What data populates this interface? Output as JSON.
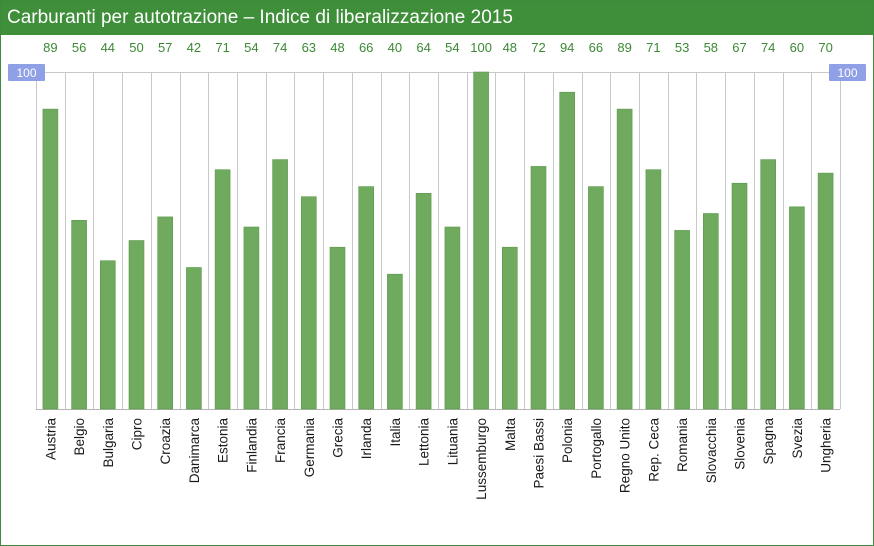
{
  "title": "Carburanti per autotrazione – Indice di liberalizzazione 2015",
  "reference_label": "100",
  "colors": {
    "header": "#3f8f3a",
    "bar": "#6faa5e",
    "bar_edge": "#5c9a4c",
    "value_text": "#3b8a33",
    "reference_box": "#8fa0e6",
    "grid": "#c8c8c8"
  },
  "chart_data": {
    "type": "bar",
    "title": "Carburanti per autotrazione – Indice di liberalizzazione 2015",
    "xlabel": "",
    "ylabel": "",
    "ylim": [
      0,
      100
    ],
    "reference_line": 100,
    "categories": [
      "Austria",
      "Belgio",
      "Bulgaria",
      "Cipro",
      "Croazia",
      "Danimarca",
      "Estonia",
      "Finlandia",
      "Francia",
      "Germania",
      "Grecia",
      "Irlanda",
      "Italia",
      "Lettonia",
      "Lituania",
      "Lussemburgo",
      "Malta",
      "Paesi Bassi",
      "Polonia",
      "Portogallo",
      "Regno Unito",
      "Rep. Ceca",
      "Romania",
      "Slovacchia",
      "Slovenia",
      "Spagna",
      "Svezia",
      "Ungheria"
    ],
    "values": [
      89,
      56,
      44,
      50,
      57,
      42,
      71,
      54,
      74,
      63,
      48,
      66,
      40,
      64,
      54,
      100,
      48,
      72,
      94,
      66,
      89,
      71,
      53,
      58,
      67,
      74,
      60,
      70
    ]
  }
}
